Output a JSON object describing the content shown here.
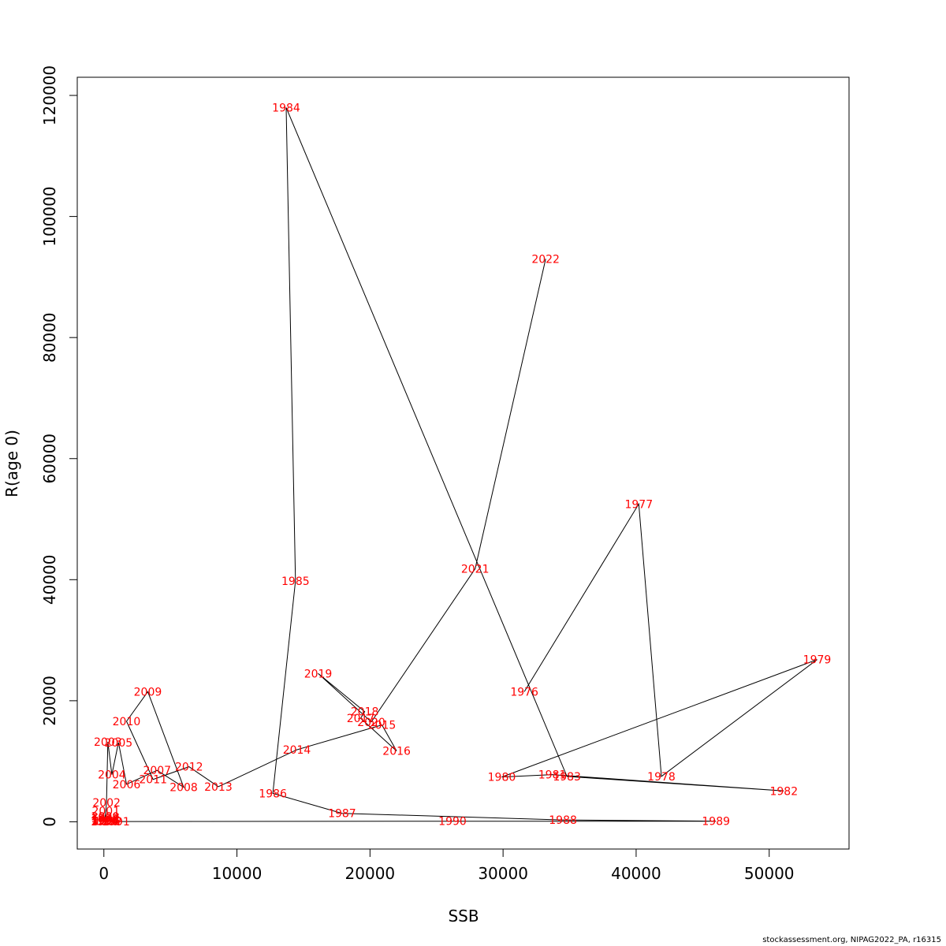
{
  "chart_data": {
    "type": "line",
    "xlabel": "SSB",
    "ylabel": "R(age 0)",
    "xlim": [
      -2000,
      56000
    ],
    "ylim": [
      -4500,
      123000
    ],
    "xticks": [
      0,
      10000,
      20000,
      30000,
      40000,
      50000
    ],
    "yticks": [
      0,
      20000,
      40000,
      60000,
      80000,
      100000,
      120000
    ],
    "line_color": "#000000",
    "label_color": "#ff0000",
    "points": [
      {
        "year": "1976",
        "x": 31600,
        "y": 21500
      },
      {
        "year": "1977",
        "x": 40200,
        "y": 52500
      },
      {
        "year": "1978",
        "x": 41900,
        "y": 7500
      },
      {
        "year": "1979",
        "x": 53600,
        "y": 26800
      },
      {
        "year": "1980",
        "x": 29900,
        "y": 7400
      },
      {
        "year": "1981",
        "x": 33700,
        "y": 7800
      },
      {
        "year": "1982",
        "x": 51100,
        "y": 5100
      },
      {
        "year": "1983",
        "x": 34800,
        "y": 7500
      },
      {
        "year": "1984",
        "x": 13700,
        "y": 118000
      },
      {
        "year": "1985",
        "x": 14400,
        "y": 39800
      },
      {
        "year": "1986",
        "x": 12700,
        "y": 4700
      },
      {
        "year": "1987",
        "x": 17900,
        "y": 1400
      },
      {
        "year": "1988",
        "x": 34500,
        "y": 300
      },
      {
        "year": "1989",
        "x": 46000,
        "y": 100
      },
      {
        "year": "1990",
        "x": 26200,
        "y": 100
      },
      {
        "year": "1991",
        "x": 900,
        "y": 50
      },
      {
        "year": "1992",
        "x": 300,
        "y": 150
      },
      {
        "year": "1993",
        "x": 150,
        "y": 400
      },
      {
        "year": "1994",
        "x": 100,
        "y": 200
      },
      {
        "year": "1995",
        "x": 200,
        "y": 100
      },
      {
        "year": "1996",
        "x": 50,
        "y": 50
      },
      {
        "year": "1997",
        "x": 80,
        "y": 600
      },
      {
        "year": "1998",
        "x": 120,
        "y": 300
      },
      {
        "year": "1999",
        "x": 60,
        "y": 150
      },
      {
        "year": "2000",
        "x": 100,
        "y": 900
      },
      {
        "year": "2001",
        "x": 150,
        "y": 1800
      },
      {
        "year": "2002",
        "x": 200,
        "y": 3200
      },
      {
        "year": "2003",
        "x": 300,
        "y": 13200
      },
      {
        "year": "2004",
        "x": 600,
        "y": 7800
      },
      {
        "year": "2005",
        "x": 1100,
        "y": 13100
      },
      {
        "year": "2006",
        "x": 1700,
        "y": 6200
      },
      {
        "year": "2007",
        "x": 4000,
        "y": 8500
      },
      {
        "year": "2008",
        "x": 6000,
        "y": 5700
      },
      {
        "year": "2009",
        "x": 3300,
        "y": 21500
      },
      {
        "year": "2010",
        "x": 1700,
        "y": 16600
      },
      {
        "year": "2011",
        "x": 3700,
        "y": 7000
      },
      {
        "year": "2012",
        "x": 6400,
        "y": 9100
      },
      {
        "year": "2013",
        "x": 8600,
        "y": 5800
      },
      {
        "year": "2014",
        "x": 14500,
        "y": 11900
      },
      {
        "year": "2015",
        "x": 20900,
        "y": 16000
      },
      {
        "year": "2016",
        "x": 22000,
        "y": 11700
      },
      {
        "year": "2017",
        "x": 19300,
        "y": 17100
      },
      {
        "year": "2018",
        "x": 19600,
        "y": 18200
      },
      {
        "year": "2019",
        "x": 16100,
        "y": 24500
      },
      {
        "year": "2020",
        "x": 20100,
        "y": 16500
      },
      {
        "year": "2021",
        "x": 27900,
        "y": 41800
      },
      {
        "year": "2022",
        "x": 33200,
        "y": 93000
      }
    ]
  },
  "footer": "stockassessment.org, NIPAG2022_PA, r16315"
}
